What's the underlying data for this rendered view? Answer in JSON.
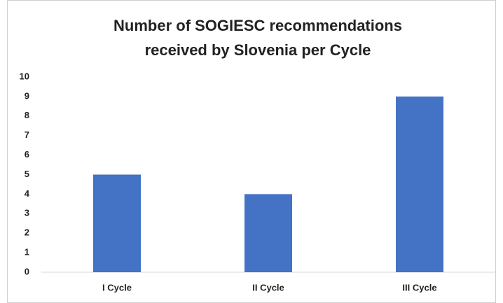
{
  "chart_data": {
    "type": "bar",
    "title": [
      "Number of SOGIESC recommendations",
      "received by Slovenia per Cycle"
    ],
    "categories": [
      "I Cycle",
      "II Cycle",
      "III Cycle"
    ],
    "values": [
      5,
      4,
      9
    ],
    "color": "#4472c4",
    "ylim": [
      0,
      10
    ],
    "yticks": [
      0,
      1,
      2,
      3,
      4,
      5,
      6,
      7,
      8,
      9,
      10
    ],
    "grid": false
  }
}
